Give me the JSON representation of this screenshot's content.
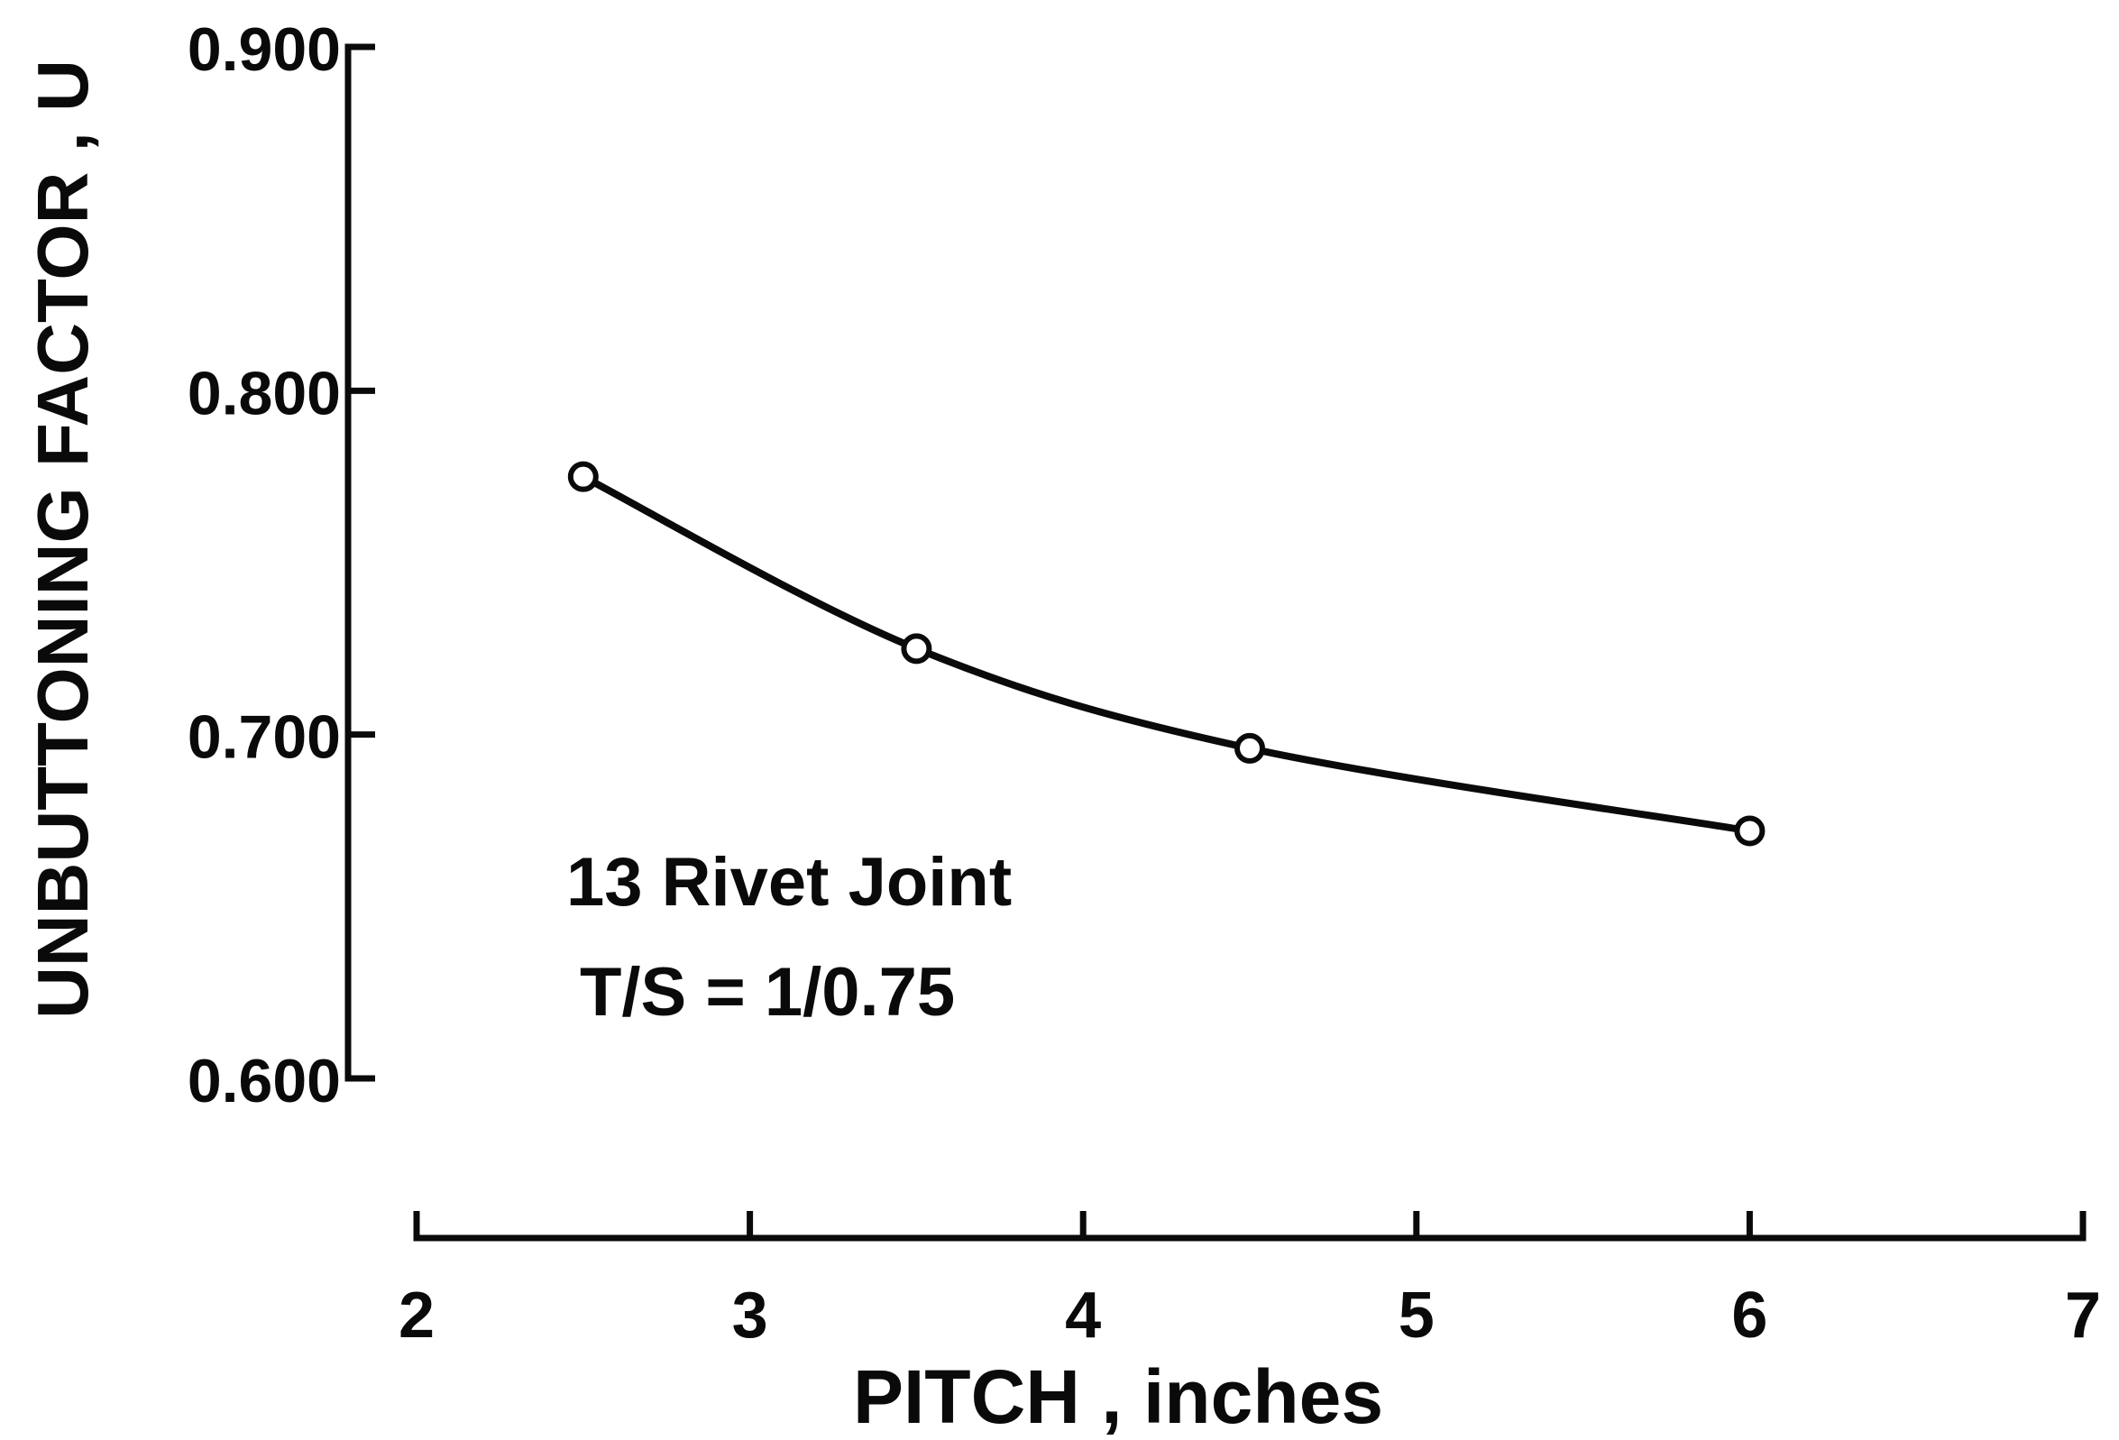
{
  "chart_data": {
    "type": "line",
    "title": "",
    "xlabel": "PITCH , inches",
    "ylabel": "UNBUTTONING FACTOR , U",
    "xlim": [
      2,
      7
    ],
    "ylim": [
      0.6,
      0.9
    ],
    "x_ticks": [
      2,
      3,
      4,
      5,
      6,
      7
    ],
    "x_tick_labels": [
      "2",
      "3",
      "4",
      "5",
      "6",
      "7"
    ],
    "y_ticks": [
      0.6,
      0.7,
      0.8,
      0.9
    ],
    "y_tick_labels": [
      "0.600",
      "0.700",
      "0.800",
      "0.900"
    ],
    "grid": false,
    "series": [
      {
        "x": [
          2.5,
          3.5,
          4.5,
          6.0
        ],
        "y": [
          0.775,
          0.725,
          0.696,
          0.672
        ]
      }
    ],
    "annotations": [
      "13 Rivet Joint",
      "T/S = 1/0.75"
    ],
    "colors": {
      "ink": "#0a0a0a",
      "background": "#ffffff"
    }
  }
}
